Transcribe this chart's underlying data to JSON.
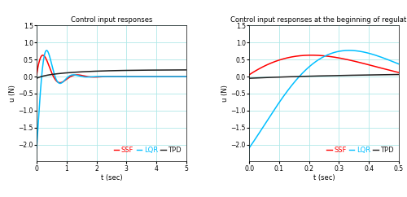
{
  "title1": "Control input responses",
  "title2": "Control input responses at the beginning of regulation",
  "xlabel": "t (sec)",
  "ylabel": "u (N)",
  "xlim1": [
    0,
    5
  ],
  "ylim1": [
    -2.5,
    1.5
  ],
  "xlim2": [
    0,
    0.5
  ],
  "ylim2": [
    -2.5,
    1.5
  ],
  "color_ssf": "#ff0000",
  "color_lqr": "#00bfff",
  "color_tpd": "#202020",
  "linewidth": 1.1,
  "grid_color": "#b0e8e8",
  "bg_color": "#ffffff"
}
